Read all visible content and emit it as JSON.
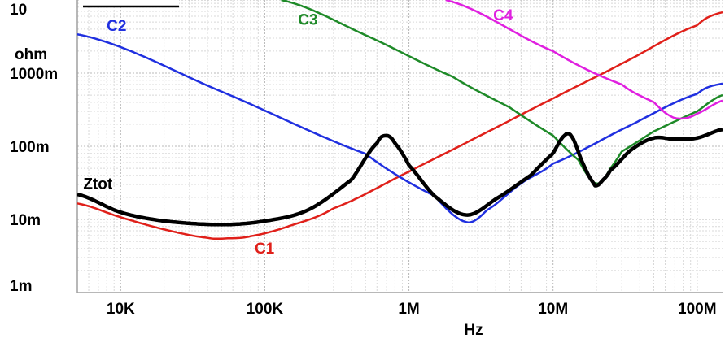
{
  "chart_data": {
    "type": "line",
    "xscale": "log",
    "yscale": "log",
    "xlim": [
      5000,
      150000000
    ],
    "ylim": [
      0.001,
      10
    ],
    "xlabel": "Hz",
    "yunit": "ohm",
    "grid": true,
    "x_ticks": [
      {
        "value": 10000,
        "label": "10K"
      },
      {
        "value": 100000,
        "label": "100K"
      },
      {
        "value": 1000000,
        "label": "1M"
      },
      {
        "value": 10000000,
        "label": "10M"
      },
      {
        "value": 100000000,
        "label": "100M"
      }
    ],
    "y_ticks": [
      {
        "value": 10,
        "label": "10"
      },
      {
        "value": 1,
        "label": "1000m"
      },
      {
        "value": 0.1,
        "label": "100m"
      },
      {
        "value": 0.01,
        "label": "10m"
      },
      {
        "value": 0.001,
        "label": "1m"
      }
    ],
    "series": [
      {
        "name": "C1",
        "color": "#e0201a",
        "width": 2.5,
        "label_at": [
          85000,
          0.0034
        ],
        "label_anchor": "start",
        "x": [
          5000,
          10000,
          20000,
          40000,
          55000,
          80000,
          150000,
          300000,
          1000000,
          3000000,
          10000000,
          30000000,
          100000000,
          150000000
        ],
        "y": [
          0.0165,
          0.0107,
          0.0073,
          0.0056,
          0.0055,
          0.0059,
          0.0082,
          0.0142,
          0.045,
          0.135,
          0.45,
          1.35,
          4.5,
          6.8
        ]
      },
      {
        "name": "C2",
        "color": "#2030e0",
        "width": 2.5,
        "label_at": [
          8000,
          3.8
        ],
        "label_anchor": "start",
        "x": [
          5000,
          50000,
          500000,
          1500000,
          2500000,
          3500000,
          6000000,
          10000000,
          30000000,
          100000000,
          150000000
        ],
        "y": [
          3.4,
          0.56,
          0.079,
          0.021,
          0.0092,
          0.0135,
          0.031,
          0.058,
          0.17,
          0.52,
          0.72
        ]
      },
      {
        "name": "C3",
        "color": "#1e8a28",
        "width": 2.5,
        "label_at": [
          170000,
          4.6
        ],
        "label_anchor": "start",
        "x": [
          130000,
          500000,
          2000000,
          5000000,
          10000000,
          15000000,
          18000000,
          20000000,
          22000000,
          25000000,
          30000000,
          50000000,
          100000000,
          150000000
        ],
        "y": [
          10,
          3.3,
          0.9,
          0.34,
          0.14,
          0.065,
          0.037,
          0.031,
          0.034,
          0.05,
          0.085,
          0.16,
          0.3,
          0.5
        ]
      },
      {
        "name": "C4",
        "color": "#e020e0",
        "width": 2.5,
        "label_at": [
          4500000,
          5.3
        ],
        "label_anchor": "middle",
        "x": [
          1800000,
          10000000,
          30000000,
          50000000,
          65000000,
          80000000,
          100000000,
          150000000
        ],
        "y": [
          10,
          2.0,
          0.7,
          0.4,
          0.26,
          0.24,
          0.28,
          0.42
        ]
      },
      {
        "name": "Ztot",
        "color": "#000000",
        "width": 4.5,
        "label_at": [
          5500,
          0.026
        ],
        "label_anchor": "start",
        "x": [
          5000,
          10000,
          20000,
          50000,
          100000,
          200000,
          400000,
          600000,
          700000,
          800000,
          1000000,
          1500000,
          2500000,
          4000000,
          7000000,
          10000000,
          12000000,
          13500000,
          16000000,
          19000000,
          20000000,
          22000000,
          25000000,
          35000000,
          50000000,
          70000000,
          100000000,
          150000000
        ],
        "y": [
          0.022,
          0.0125,
          0.0095,
          0.0085,
          0.0095,
          0.0135,
          0.035,
          0.11,
          0.14,
          0.11,
          0.055,
          0.021,
          0.0115,
          0.019,
          0.04,
          0.08,
          0.14,
          0.135,
          0.06,
          0.032,
          0.029,
          0.034,
          0.047,
          0.09,
          0.13,
          0.125,
          0.13,
          0.17
        ]
      }
    ]
  }
}
